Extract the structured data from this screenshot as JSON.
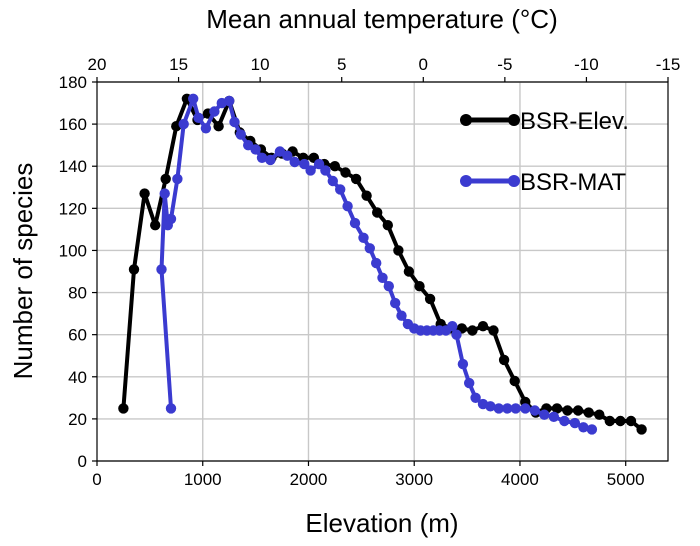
{
  "chart_data": {
    "type": "line",
    "xlabel": "Elevation (m)",
    "ylabel": "Number of species",
    "x2label": "Mean annual temperature (°C)",
    "xlim": [
      0,
      5400
    ],
    "ylim": [
      0,
      180
    ],
    "x2lim": [
      20,
      -15
    ],
    "xticks": [
      0,
      1000,
      2000,
      3000,
      4000,
      5000
    ],
    "yticks": [
      0,
      20,
      40,
      60,
      80,
      100,
      120,
      140,
      160,
      180
    ],
    "x2ticks": [
      20,
      15,
      10,
      5,
      0,
      -5,
      -10,
      -15
    ],
    "grid": true,
    "legend_position": "top-right",
    "series": [
      {
        "name": "BSR-Elev.",
        "color": "#000000",
        "x": [
          250,
          350,
          450,
          550,
          650,
          750,
          850,
          950,
          1050,
          1150,
          1250,
          1350,
          1450,
          1550,
          1650,
          1750,
          1850,
          1950,
          2050,
          2150,
          2250,
          2350,
          2450,
          2550,
          2650,
          2750,
          2850,
          2950,
          3050,
          3150,
          3250,
          3350,
          3450,
          3550,
          3650,
          3750,
          3850,
          3950,
          4050,
          4150,
          4250,
          4350,
          4450,
          4550,
          4650,
          4750,
          4850,
          4950,
          5050,
          5150
        ],
        "values": [
          25,
          91,
          127,
          112,
          134,
          159,
          172,
          162,
          165,
          159,
          171,
          156,
          152,
          148,
          144,
          146,
          147,
          144,
          144,
          141,
          140,
          137,
          134,
          126,
          118,
          112,
          100,
          90,
          83,
          77,
          65,
          63,
          63,
          62,
          64,
          62,
          48,
          38,
          28,
          23,
          25,
          25,
          24,
          24,
          23,
          22,
          19,
          19,
          19,
          15
        ]
      },
      {
        "name": "BSR-MAT",
        "color": "#3b3bd0",
        "x": [
          700,
          610,
          640,
          670,
          700,
          760,
          820,
          910,
          960,
          1030,
          1110,
          1180,
          1250,
          1300,
          1360,
          1430,
          1500,
          1560,
          1640,
          1730,
          1800,
          1870,
          1960,
          2020,
          2100,
          2160,
          2230,
          2300,
          2370,
          2440,
          2520,
          2580,
          2640,
          2700,
          2760,
          2820,
          2880,
          2940,
          3000,
          3060,
          3120,
          3180,
          3240,
          3300,
          3360,
          3400,
          3460,
          3520,
          3580,
          3650,
          3720,
          3800,
          3880,
          3960,
          4050,
          4140,
          4230,
          4320,
          4420,
          4520,
          4600,
          4680
        ],
        "values": [
          25,
          91,
          127,
          112,
          115,
          134,
          160,
          172,
          163,
          158,
          166,
          170,
          171,
          161,
          155,
          150,
          148,
          144,
          143,
          147,
          145,
          142,
          141,
          138,
          141,
          138,
          133,
          129,
          121,
          113,
          106,
          101,
          94,
          87,
          83,
          75,
          69,
          65,
          63,
          62,
          62,
          62,
          62,
          62,
          64,
          60,
          46,
          37,
          30,
          27,
          26,
          25,
          25,
          25,
          25,
          24,
          22,
          21,
          19,
          18,
          16,
          15
        ]
      }
    ]
  }
}
